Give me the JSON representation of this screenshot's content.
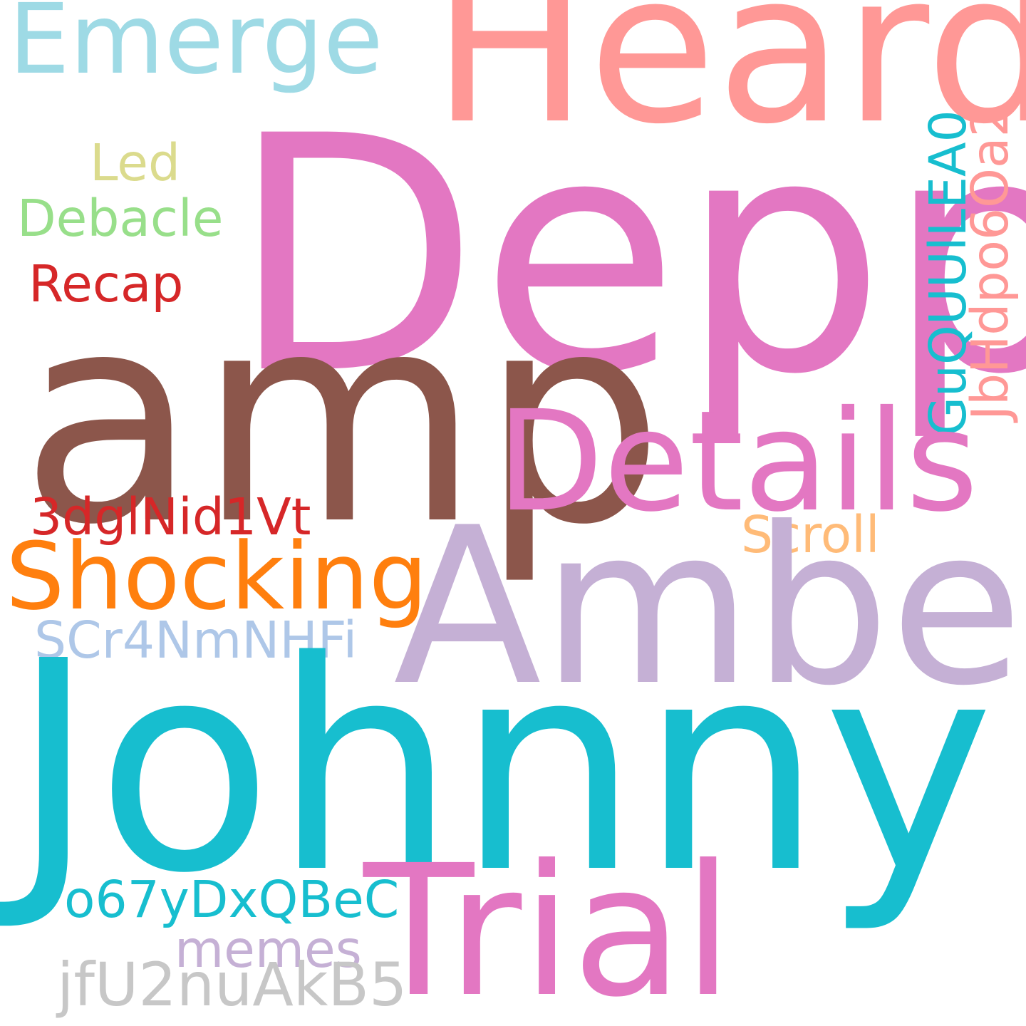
{
  "words": {
    "heard": {
      "text": "Heard",
      "color": "#ff9896"
    },
    "emerge": {
      "text": "Emerge",
      "color": "#9edae5"
    },
    "depp": {
      "text": "Depp",
      "color": "#e377c2"
    },
    "led": {
      "text": "Led",
      "color": "#dbdb8d"
    },
    "debacle": {
      "text": "Debacle",
      "color": "#98df8a"
    },
    "recap": {
      "text": "Recap",
      "color": "#d62728"
    },
    "amp": {
      "text": "amp",
      "color": "#8c564b"
    },
    "gu": {
      "text": "GuQUUlLEA0",
      "color": "#17becf"
    },
    "jb": {
      "text": "JbHdpo6Oa2",
      "color": "#ff9896"
    },
    "details": {
      "text": "Details",
      "color": "#e377c2"
    },
    "dgl": {
      "text": "3dglNid1Vt",
      "color": "#d62728"
    },
    "scroll": {
      "text": "Scroll",
      "color": "#ffbb78"
    },
    "shocking": {
      "text": "Shocking",
      "color": "#ff7f0e"
    },
    "amber": {
      "text": "Amber",
      "color": "#c5b0d5"
    },
    "scr": {
      "text": "SCr4NmNHFi",
      "color": "#aec7e8"
    },
    "johnny": {
      "text": "Johnny",
      "color": "#17becf"
    },
    "o67": {
      "text": "o67yDxQBeC",
      "color": "#17becf"
    },
    "trial": {
      "text": "Trial",
      "color": "#e377c2"
    },
    "memes": {
      "text": "memes",
      "color": "#c5b0d5"
    },
    "jfu": {
      "text": "jfU2nuAkB5",
      "color": "#c7c7c7"
    }
  }
}
